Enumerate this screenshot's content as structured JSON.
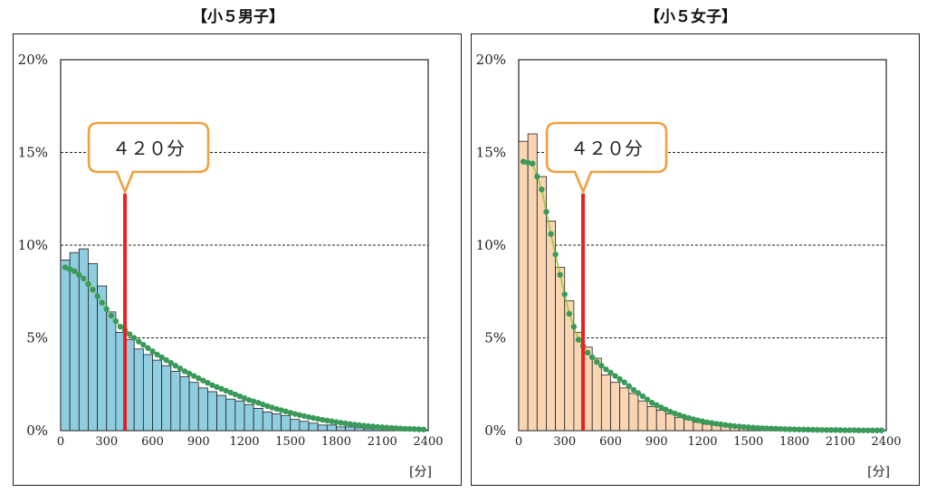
{
  "chart_data": [
    {
      "type": "bar",
      "title": "【小５男子】",
      "xlabel": "[分]",
      "ylabel": "",
      "ylim": [
        0,
        20
      ],
      "xlim": [
        0,
        2400
      ],
      "bin_width": 60,
      "x_ticks": [
        0,
        300,
        600,
        900,
        1200,
        1500,
        1800,
        2100,
        2400
      ],
      "y_ticks": [
        "0%",
        "5%",
        "10%",
        "15%",
        "20%"
      ],
      "grid": "horizontal dashed",
      "bar_color": "#8fcde0",
      "bar_values": [
        9.2,
        9.6,
        9.8,
        9.0,
        7.8,
        6.4,
        5.3,
        4.9,
        4.4,
        4.1,
        3.8,
        3.5,
        3.2,
        2.9,
        2.6,
        2.3,
        2.1,
        1.9,
        1.7,
        1.6,
        1.4,
        1.2,
        1.0,
        0.9,
        0.8,
        0.6,
        0.5,
        0.4,
        0.3,
        0.3,
        0.2,
        0.2,
        0.15,
        0.1,
        0.1,
        0.1,
        0.05,
        0.05,
        0.05,
        0.03
      ],
      "fit_values": [
        8.8,
        8.6,
        8.2,
        7.6,
        6.9,
        6.2,
        5.6,
        5.2,
        4.8,
        4.45,
        4.1,
        3.8,
        3.5,
        3.2,
        2.95,
        2.7,
        2.45,
        2.25,
        2.05,
        1.85,
        1.65,
        1.5,
        1.32,
        1.17,
        1.03,
        0.9,
        0.78,
        0.68,
        0.58,
        0.5,
        0.42,
        0.35,
        0.29,
        0.24,
        0.2,
        0.16,
        0.13,
        0.1,
        0.08,
        0.06
      ],
      "marker_value": 420,
      "marker_label": "４２０分",
      "marker_color": "#e82020"
    },
    {
      "type": "bar",
      "title": "【小５女子】",
      "xlabel": "[分]",
      "ylabel": "",
      "ylim": [
        0,
        20
      ],
      "xlim": [
        0,
        2400
      ],
      "bin_width": 60,
      "x_ticks": [
        0,
        300,
        600,
        900,
        1200,
        1500,
        1800,
        2100,
        2400
      ],
      "y_ticks": [
        "0%",
        "5%",
        "10%",
        "15%",
        "20%"
      ],
      "grid": "horizontal dashed",
      "bar_color": "#f9d5b4",
      "bar_values": [
        15.6,
        16.0,
        13.7,
        11.3,
        8.8,
        7.0,
        5.3,
        4.5,
        3.9,
        3.0,
        2.6,
        2.3,
        2.0,
        1.6,
        1.3,
        1.1,
        0.9,
        0.7,
        0.6,
        0.45,
        0.35,
        0.3,
        0.25,
        0.2,
        0.15,
        0.12,
        0.1,
        0.08,
        0.06,
        0.05,
        0.04,
        0.03,
        0.03,
        0.02,
        0.02,
        0.01,
        0.01,
        0.01,
        0.01,
        0.01
      ],
      "fit_values": [
        14.5,
        14.4,
        13.0,
        10.6,
        8.4,
        6.3,
        4.9,
        4.2,
        3.7,
        3.3,
        2.95,
        2.6,
        2.2,
        1.85,
        1.5,
        1.25,
        1.02,
        0.83,
        0.68,
        0.55,
        0.45,
        0.37,
        0.3,
        0.24,
        0.2,
        0.16,
        0.13,
        0.11,
        0.09,
        0.07,
        0.06,
        0.05,
        0.04,
        0.03,
        0.03,
        0.02,
        0.02,
        0.01,
        0.01,
        0.01
      ],
      "marker_value": 420,
      "marker_label": "４２０分",
      "marker_color": "#e82020"
    }
  ],
  "colors": {
    "fit_line": "#9acd32",
    "fit_point": "#3a9a5a",
    "callout_border": "#f0a040",
    "grid": "#222222"
  }
}
